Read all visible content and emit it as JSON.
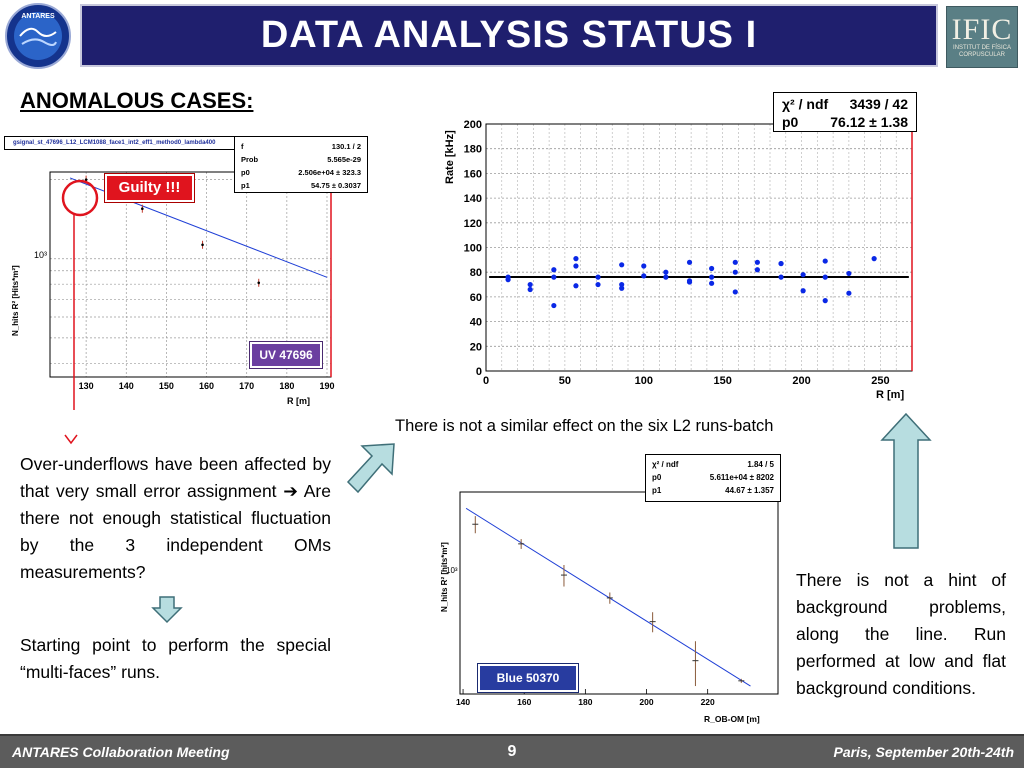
{
  "header": {
    "title": "DATA ANALYSIS STATUS I",
    "logo_left_text": "ANTARES",
    "logo_right_big": "IFIC",
    "logo_right_small_1": "INSTITUT DE FÍSICA",
    "logo_right_small_2": "CORPUSCULAR"
  },
  "section_heading": "ANOMALOUS CASES:",
  "left_plot": {
    "histogram_title": "gsignal_st_47696_L12_LCM1088_face1_int2_eff1_method0_lambda400",
    "stats": {
      "row1_label": "f",
      "row1_value": "130.1 / 2",
      "row2_label": "Prob",
      "row2_value": "5.565e-29",
      "row3_label": "p0",
      "row3_value": "2.506e+04  ± 323.3",
      "row4_label": "p1",
      "row4_value": "54.75  ± 0.3037"
    },
    "guilty_label": "Guilty !!!",
    "run_label": "UV 47696",
    "ylabel": "N_hits R² [Hits*m²]",
    "y_tick": "10³",
    "xlabel": "R [m]",
    "x_ticks": [
      "130",
      "140",
      "150",
      "160",
      "170",
      "180",
      "190"
    ],
    "points": [
      {
        "x": 130,
        "y": 2000
      },
      {
        "x": 144,
        "y": 1550
      },
      {
        "x": 159,
        "y": 1130
      },
      {
        "x": 173,
        "y": 810
      }
    ],
    "fit": {
      "x0": 126,
      "y0": 2030,
      "x1": 190,
      "y1": 850
    },
    "xlim": [
      121,
      191
    ],
    "ylim_log": [
      2.55,
      3.33
    ],
    "accent_red": "#e0141e",
    "run_label_bg": "#6b3fa0"
  },
  "right_plot": {
    "stats": {
      "row1_label": "χ² / ndf",
      "row1_value": "3439 / 42",
      "row2_label": "p0",
      "row2_value": "76.12 ±  1.38"
    },
    "ylabel": "Rate [kHz]",
    "xlabel": "R [m]",
    "y_ticks": [
      "0",
      "20",
      "40",
      "60",
      "80",
      "100",
      "120",
      "140",
      "160",
      "180",
      "200"
    ],
    "x_ticks": [
      "0",
      "50",
      "100",
      "150",
      "200",
      "250"
    ],
    "fit_level": 76.12,
    "xlim": [
      0,
      270
    ],
    "ylim": [
      0,
      200
    ],
    "point_color": "#0a28e6",
    "points": [
      [
        14,
        76
      ],
      [
        14,
        74
      ],
      [
        28,
        70
      ],
      [
        28,
        66
      ],
      [
        43,
        82
      ],
      [
        43,
        76
      ],
      [
        43,
        53
      ],
      [
        57,
        91
      ],
      [
        57,
        85
      ],
      [
        57,
        69
      ],
      [
        71,
        76
      ],
      [
        71,
        70
      ],
      [
        86,
        86
      ],
      [
        86,
        70
      ],
      [
        86,
        67
      ],
      [
        100,
        85
      ],
      [
        100,
        77
      ],
      [
        114,
        80
      ],
      [
        114,
        76
      ],
      [
        129,
        88
      ],
      [
        129,
        73
      ],
      [
        129,
        72
      ],
      [
        143,
        83
      ],
      [
        143,
        76
      ],
      [
        143,
        71
      ],
      [
        158,
        88
      ],
      [
        158,
        80
      ],
      [
        158,
        64
      ],
      [
        172,
        88
      ],
      [
        172,
        82
      ],
      [
        187,
        87
      ],
      [
        187,
        87
      ],
      [
        187,
        76
      ],
      [
        201,
        78
      ],
      [
        201,
        65
      ],
      [
        215,
        89
      ],
      [
        215,
        76
      ],
      [
        215,
        57
      ],
      [
        230,
        79
      ],
      [
        230,
        63
      ],
      [
        246,
        91
      ]
    ]
  },
  "bottom_plot": {
    "stats": {
      "row1_label": "χ² / ndf",
      "row1_value": "1.84 / 5",
      "row2_label": "p0",
      "row2_value": "5.611e+04 ±  8202",
      "row3_label": "p1",
      "row3_value": "44.67 ± 1.357"
    },
    "ylabel": "N_hits R² [hits*m²]",
    "y_tick": "10³",
    "xlabel": "R_OB-OM [m]",
    "x_ticks": [
      "140",
      "160",
      "180",
      "200",
      "220"
    ],
    "run_label": "Blue 50370",
    "points": [
      {
        "x": 144,
        "y": 2150,
        "err": 220
      },
      {
        "x": 159,
        "y": 1700,
        "err": 100
      },
      {
        "x": 173,
        "y": 1170,
        "err": 150
      },
      {
        "x": 188,
        "y": 890,
        "err": 60
      },
      {
        "x": 202,
        "y": 670,
        "err": 80
      },
      {
        "x": 216,
        "y": 420,
        "err": 110
      },
      {
        "x": 231,
        "y": 330,
        "err": 8
      }
    ],
    "fit": {
      "x0": 141,
      "y0": 2600,
      "x1": 234,
      "y1": 310
    },
    "xlim": [
      139,
      243
    ],
    "ylim_log": [
      2.45,
      3.5
    ],
    "run_label_bg": "#283ca0"
  },
  "texts": {
    "l2_note": "There is not a similar effect on the six L2 runs-batch",
    "left_paragraph": "Over-underflows have been affected by that very small error assignment ➔ Are there not enough statistical fluctuation by the 3 independent OMs measurements?",
    "left_paragraph_2": "Starting point to perform the special “multi-faces” runs.",
    "right_paragraph": "There is not a hint of background problems, along the line. Run performed at low and flat background conditions."
  },
  "footer": {
    "left": "ANTARES Collaboration Meeting",
    "page": "9",
    "right": "Paris, September 20th-24th"
  },
  "colors": {
    "header_bg": "#1f1f6e",
    "arrow_fill": "#b7dde0",
    "arrow_stroke": "#3f6f78",
    "footer_bg": "#5c5c5c"
  }
}
